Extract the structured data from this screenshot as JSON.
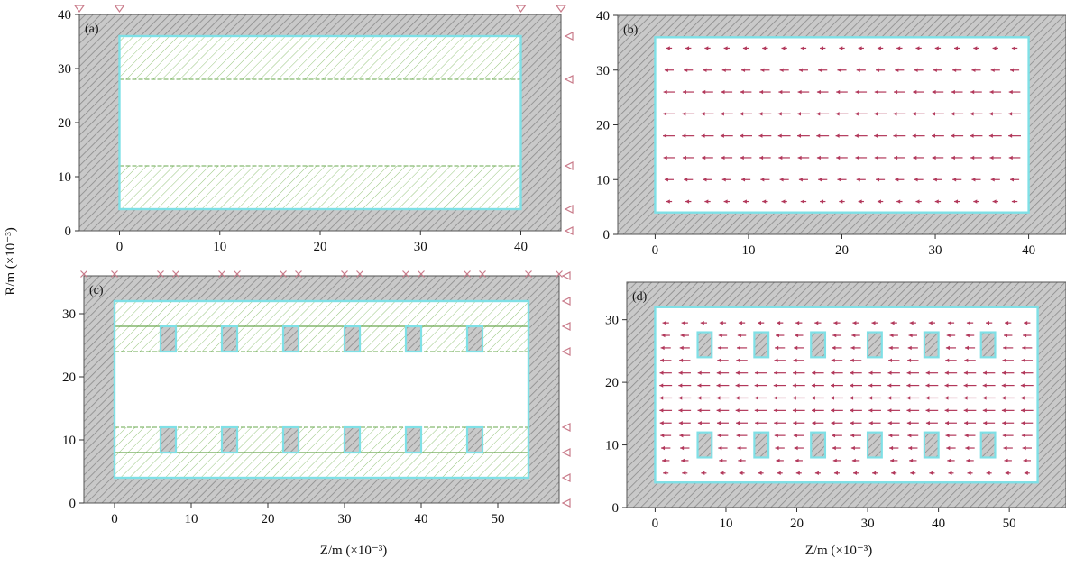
{
  "figure": {
    "xlabel": "Z/m (×10⁻³)",
    "ylabel": "R/m (×10⁻³)",
    "colors": {
      "background": "#ffffff",
      "wall_fill": "#c9c9c9",
      "wall_hatch": "#8a8a8a",
      "boundary": "#7fe0e6",
      "porous_hatch": "#8cc070",
      "porous_line": "#6aa84f",
      "arrow": "#b2385b",
      "bc_marker": "#c97b8a"
    },
    "panels": [
      {
        "id": "a",
        "label": "(a)",
        "kind": "geometry",
        "xlim": [
          -4,
          44
        ],
        "ylim": [
          0,
          40
        ],
        "xticks": [
          "0",
          "10",
          "20",
          "30",
          "40"
        ],
        "yticks": [
          "0",
          "10",
          "20",
          "30",
          "40"
        ],
        "channel": {
          "z": [
            0,
            40
          ],
          "r": [
            4,
            36
          ]
        },
        "porous_bands": [
          [
            4,
            12
          ],
          [
            28,
            36
          ]
        ],
        "fins": []
      },
      {
        "id": "b",
        "label": "(b)",
        "kind": "velocity",
        "xlim": [
          -4,
          44
        ],
        "ylim": [
          0,
          40
        ],
        "xticks": [
          "0",
          "10",
          "20",
          "30",
          "40"
        ],
        "yticks": [
          "0",
          "10",
          "20",
          "30",
          "40"
        ],
        "channel": {
          "z": [
            0,
            40
          ],
          "r": [
            4,
            36
          ]
        },
        "fins": []
      },
      {
        "id": "c",
        "label": "(c)",
        "kind": "geometry",
        "xlim": [
          -4,
          58
        ],
        "ylim": [
          0,
          36
        ],
        "xticks": [
          "0",
          "10",
          "20",
          "30",
          "40",
          "50"
        ],
        "yticks": [
          "0",
          "10",
          "20",
          "30"
        ],
        "channel": {
          "z": [
            0,
            54
          ],
          "r": [
            4,
            32
          ]
        },
        "porous_bands": [
          [
            4,
            12
          ],
          [
            24,
            32
          ]
        ],
        "fins": [
          6,
          14,
          22,
          30,
          38,
          46
        ]
      },
      {
        "id": "d",
        "label": "(d)",
        "kind": "velocity",
        "xlim": [
          -4,
          58
        ],
        "ylim": [
          0,
          36
        ],
        "xticks": [
          "0",
          "10",
          "20",
          "30",
          "40",
          "50"
        ],
        "yticks": [
          "0",
          "10",
          "20",
          "30"
        ],
        "channel": {
          "z": [
            0,
            54
          ],
          "r": [
            4,
            32
          ]
        },
        "fins": [
          6,
          14,
          22,
          30,
          38,
          46
        ]
      }
    ]
  }
}
